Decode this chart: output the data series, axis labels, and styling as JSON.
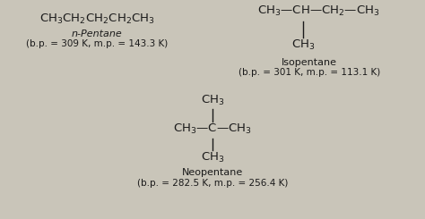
{
  "bg_color": "#c9c5b9",
  "text_color": "#1a1a1a",
  "npentane_formula": "CH$_3$CH$_2$CH$_2$CH$_2$CH$_3$",
  "npentane_name": "n-Pentane",
  "npentane_props": "(b.p. = 309 K, m.p. = 143.3 K)",
  "isopentane_name": "Isopentane",
  "isopentane_props": "(b.p. = 301 K, m.p. = 113.1 K)",
  "neopentane_name": "Neopentane",
  "neopentane_props": "(b.p. = 282.5 K, m.p. = 256.4 K)",
  "font_formula": 9.5,
  "font_name": 8,
  "font_props": 7.5
}
